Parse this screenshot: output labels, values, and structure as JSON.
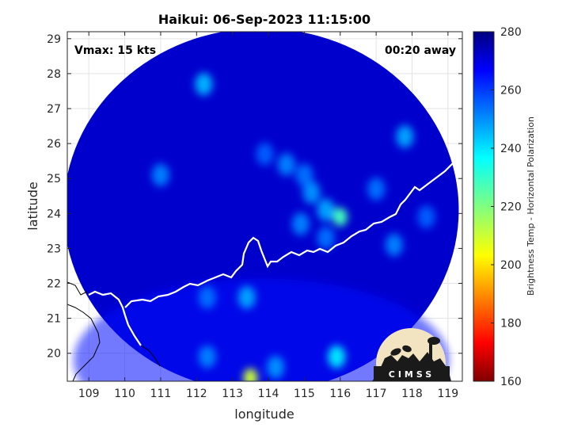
{
  "chart_data": {
    "type": "heatmap",
    "title": "Haikui: 06-Sep-2023 11:15:00",
    "xlabel": "longitude",
    "ylabel": "latitude",
    "xlim": [
      108.4,
      119.4
    ],
    "ylim": [
      19.2,
      29.2
    ],
    "x_ticks": [
      109,
      110,
      111,
      112,
      113,
      114,
      115,
      116,
      117,
      118,
      119
    ],
    "y_ticks": [
      20,
      21,
      22,
      23,
      24,
      25,
      26,
      27,
      28,
      29
    ],
    "grid": true,
    "annotations": {
      "vmax": "Vmax: 15 kts",
      "away": "00:20 away"
    },
    "colorbar": {
      "label": "Brightness Temp - Horizontal Polarization",
      "range": [
        160,
        280
      ],
      "ticks": [
        160,
        180,
        200,
        220,
        240,
        260,
        280
      ],
      "colormap": "jet"
    },
    "swath": {
      "center_lon": 113.8,
      "center_lat": 24.1,
      "radius_lon": 5.5,
      "radius_lat": 5.2,
      "background_value": 272
    },
    "features": [
      {
        "lon": 116.0,
        "lat": 23.9,
        "value": 228
      },
      {
        "lon": 115.6,
        "lat": 24.1,
        "value": 248
      },
      {
        "lon": 115.2,
        "lat": 24.6,
        "value": 250
      },
      {
        "lon": 114.9,
        "lat": 23.7,
        "value": 252
      },
      {
        "lon": 115.6,
        "lat": 23.3,
        "value": 254
      },
      {
        "lon": 114.5,
        "lat": 25.4,
        "value": 252
      },
      {
        "lon": 115.0,
        "lat": 25.1,
        "value": 254
      },
      {
        "lon": 113.9,
        "lat": 25.7,
        "value": 256
      },
      {
        "lon": 112.2,
        "lat": 27.7,
        "value": 246
      },
      {
        "lon": 111.0,
        "lat": 25.1,
        "value": 252
      },
      {
        "lon": 117.8,
        "lat": 26.2,
        "value": 248
      },
      {
        "lon": 117.0,
        "lat": 24.7,
        "value": 254
      },
      {
        "lon": 117.5,
        "lat": 23.1,
        "value": 252
      },
      {
        "lon": 118.4,
        "lat": 23.9,
        "value": 256
      },
      {
        "lon": 113.4,
        "lat": 21.6,
        "value": 248
      },
      {
        "lon": 112.3,
        "lat": 21.6,
        "value": 254
      },
      {
        "lon": 115.9,
        "lat": 19.9,
        "value": 240
      },
      {
        "lon": 113.5,
        "lat": 19.3,
        "value": 210
      },
      {
        "lon": 114.2,
        "lat": 19.6,
        "value": 250
      },
      {
        "lon": 112.3,
        "lat": 19.9,
        "value": 252
      }
    ]
  },
  "logo": {
    "text": "CIMSS"
  }
}
